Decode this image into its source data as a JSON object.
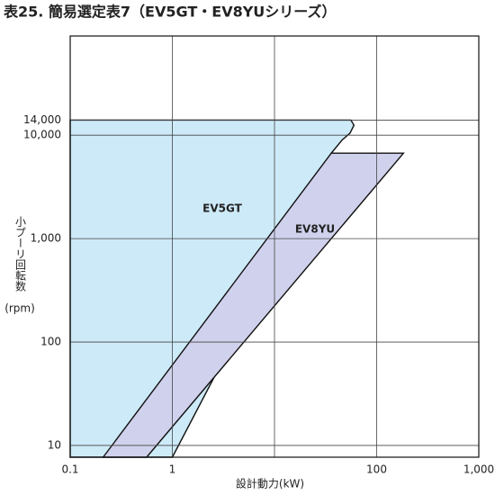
{
  "chart_data": {
    "type": "area",
    "title": "表25. 簡易選定表7（EV5GT・EV8YUシリーズ）",
    "xlabel": "設計動力(kW)",
    "ylabel": "小プーリ回転数",
    "ylabel_unit": "(rpm)",
    "xscale": "log",
    "yscale": "log",
    "xlim": [
      0.1,
      1000
    ],
    "ylim": [
      7.7,
      91000
    ],
    "xticks": [
      0.1,
      1,
      {
        "value": 10,
        "label": null
      },
      100,
      {
        "value": 1000,
        "label": "1,000"
      }
    ],
    "yticks": [
      10,
      100,
      {
        "value": 1000,
        "label": "1,000"
      },
      {
        "value": 10000,
        "label": "10,000"
      },
      {
        "value": 14000,
        "label": "14,000"
      }
    ],
    "grid": true,
    "series": [
      {
        "name": "EV5GT",
        "color": "#cdeaf8",
        "x": [
          0.1,
          56,
          60,
          55,
          46,
          36,
          1.0,
          0.1
        ],
        "values": [
          14000,
          14000,
          12500,
          10500,
          9000,
          6700,
          7.7,
          7.7
        ]
      },
      {
        "name": "EV8YU",
        "color": "#d0d1ec",
        "x": [
          36,
          183,
          0.56,
          0.21
        ],
        "values": [
          6700,
          6700,
          7.7,
          7.7
        ]
      }
    ]
  }
}
